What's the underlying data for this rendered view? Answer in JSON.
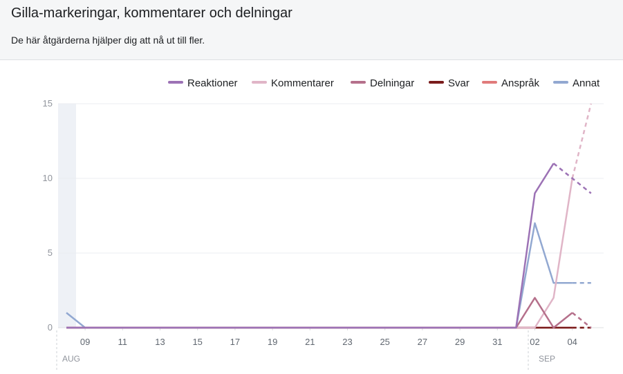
{
  "header": {
    "title": "Gilla-markeringar, kommentarer och delningar",
    "subtitle": "De här åtgärderna hjälper dig att nå ut till fler."
  },
  "chart_data": {
    "type": "line",
    "ylim": [
      0,
      15
    ],
    "yticks": [
      0,
      5,
      10,
      15
    ],
    "x_labels": [
      "09",
      "11",
      "13",
      "15",
      "17",
      "19",
      "21",
      "23",
      "25",
      "27",
      "29",
      "31",
      "02",
      "04"
    ],
    "month_labels": [
      "AUG",
      "SEP"
    ],
    "x": [
      "08-08",
      "08-09",
      "08-10",
      "08-11",
      "08-12",
      "08-13",
      "08-14",
      "08-15",
      "08-16",
      "08-17",
      "08-18",
      "08-19",
      "08-20",
      "08-21",
      "08-22",
      "08-23",
      "08-24",
      "08-25",
      "08-26",
      "08-27",
      "08-28",
      "08-29",
      "08-30",
      "08-31",
      "09-01",
      "09-02",
      "09-03",
      "09-04",
      "09-05"
    ],
    "series": [
      {
        "name": "Reaktioner",
        "color": "#9c72b5",
        "values": [
          0,
          0,
          0,
          0,
          0,
          0,
          0,
          0,
          0,
          0,
          0,
          0,
          0,
          0,
          0,
          0,
          0,
          0,
          0,
          0,
          0,
          0,
          0,
          0,
          0,
          9,
          11,
          10,
          9
        ],
        "partial_from": 3
      },
      {
        "name": "Kommentarer",
        "color": "#e0b5c7",
        "values": [
          0,
          0,
          0,
          0,
          0,
          0,
          0,
          0,
          0,
          0,
          0,
          0,
          0,
          0,
          0,
          0,
          0,
          0,
          0,
          0,
          0,
          0,
          0,
          0,
          0,
          0,
          2,
          10,
          15
        ],
        "partial_from": 2
      },
      {
        "name": "Delningar",
        "color": "#b5708b",
        "values": [
          0,
          0,
          0,
          0,
          0,
          0,
          0,
          0,
          0,
          0,
          0,
          0,
          0,
          0,
          0,
          0,
          0,
          0,
          0,
          0,
          0,
          0,
          0,
          0,
          0,
          2,
          0,
          1,
          0
        ],
        "partial_from": 2
      },
      {
        "name": "Svar",
        "color": "#7a1c1c",
        "values": [
          0,
          0,
          0,
          0,
          0,
          0,
          0,
          0,
          0,
          0,
          0,
          0,
          0,
          0,
          0,
          0,
          0,
          0,
          0,
          0,
          0,
          0,
          0,
          0,
          0,
          0,
          0,
          0,
          0
        ],
        "partial_from": 2
      },
      {
        "name": "Anspråk",
        "color": "#e07b7b",
        "values": [
          0,
          0,
          0,
          0,
          0,
          0,
          0,
          0,
          0,
          0,
          0,
          0,
          0,
          0,
          0,
          0,
          0,
          0,
          0,
          0,
          0,
          0,
          0,
          0,
          0,
          0,
          0,
          0,
          0
        ],
        "partial_from": 2
      },
      {
        "name": "Annat",
        "color": "#92a8d1",
        "values": [
          1,
          0,
          0,
          0,
          0,
          0,
          0,
          0,
          0,
          0,
          0,
          0,
          0,
          0,
          0,
          0,
          0,
          0,
          0,
          0,
          0,
          0,
          0,
          0,
          0,
          7,
          3,
          3,
          3
        ],
        "partial_from": 2
      }
    ],
    "grid": true,
    "legend": "top-right"
  }
}
